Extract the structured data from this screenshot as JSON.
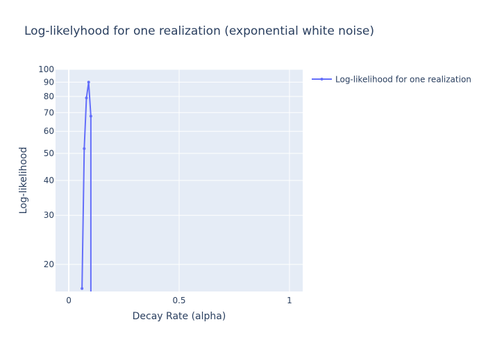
{
  "chart_data": {
    "type": "line",
    "title": "Log-likelyhood for one realization (exponential white noise)",
    "xlabel": "Decay Rate (alpha)",
    "ylabel": "Log-likelihood",
    "xlim": [
      -0.06,
      1.06
    ],
    "ylim": [
      16,
      100
    ],
    "yscale": "log",
    "x_ticks": [
      "0",
      "0.5",
      "1"
    ],
    "x_tick_values": [
      0,
      0.5,
      1
    ],
    "y_ticks": [
      "20",
      "30",
      "40",
      "50",
      "60",
      "70",
      "80",
      "90",
      "100"
    ],
    "y_tick_values": [
      20,
      30,
      40,
      50,
      60,
      70,
      80,
      90,
      100
    ],
    "grid": true,
    "legend_position": "right",
    "plot_background": "#e5ecf6",
    "series": [
      {
        "name": "Log-likelihood for one realization",
        "color": "#636efa",
        "x": [
          0.06,
          0.07,
          0.08,
          0.09,
          0.1,
          0.1
        ],
        "y": [
          16.4,
          52,
          79,
          90,
          68,
          12
        ]
      }
    ]
  }
}
